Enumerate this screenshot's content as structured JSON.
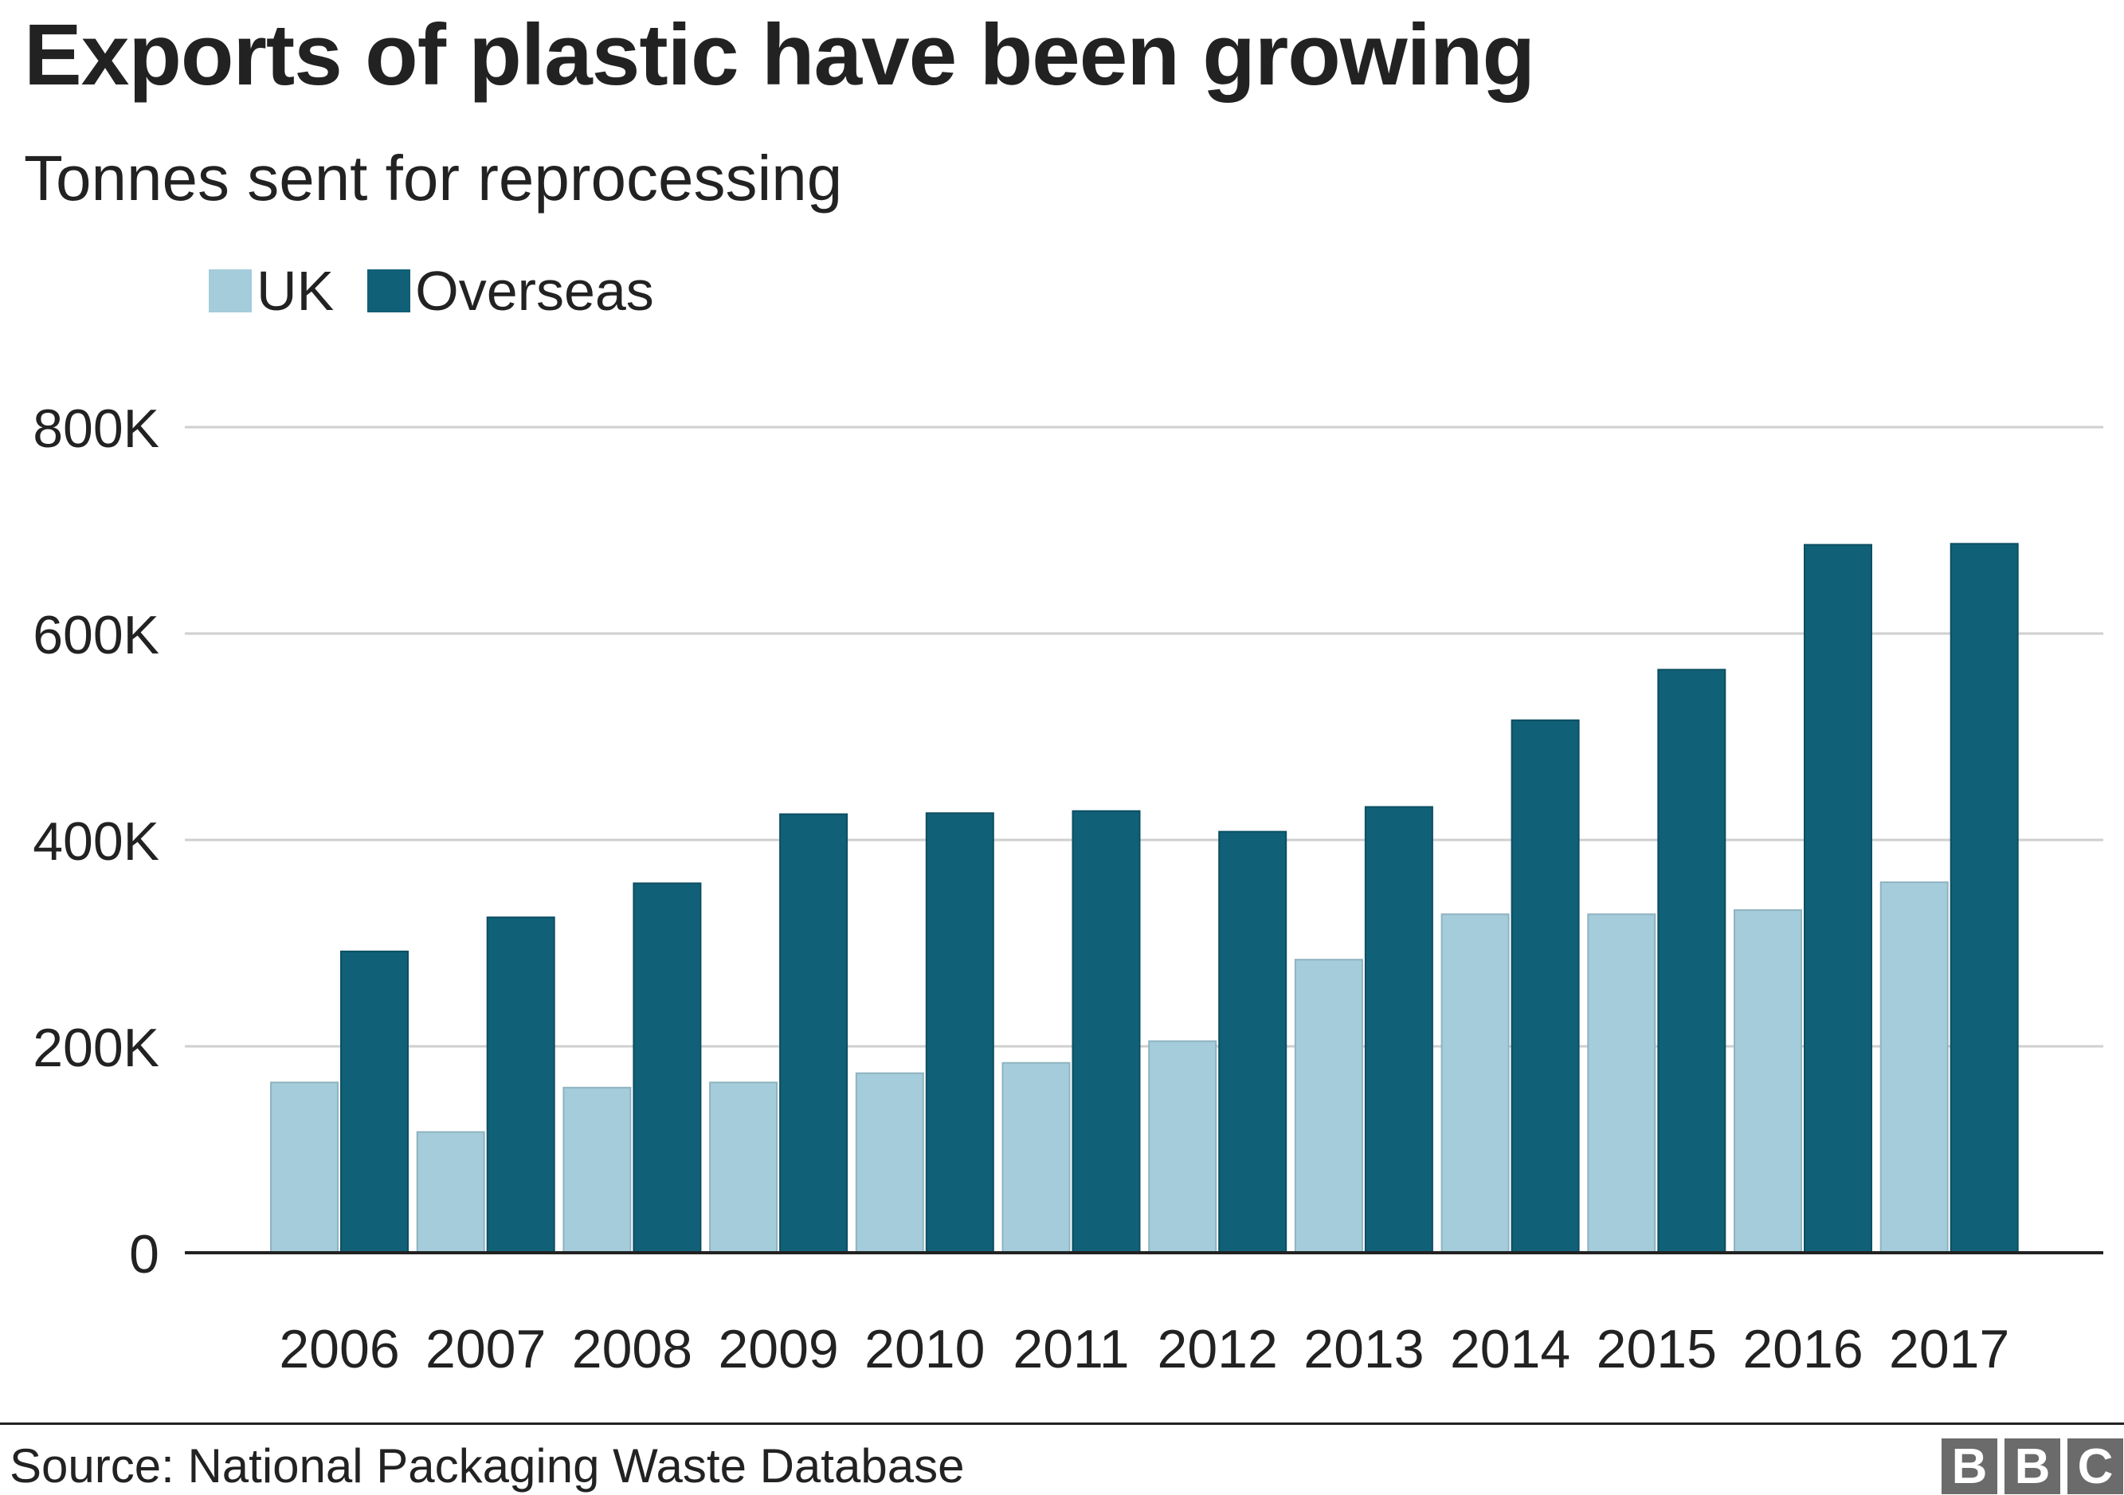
{
  "title": "Exports of plastic have been growing",
  "subtitle": "Tonnes sent for reprocessing",
  "legend": [
    {
      "label": "UK",
      "color": "#a4ccda"
    },
    {
      "label": "Overseas",
      "color": "#106077"
    }
  ],
  "source": "Source: National Packaging Waste Database",
  "logo": {
    "letters": [
      "B",
      "B",
      "C"
    ]
  },
  "chart_data": {
    "type": "bar",
    "categories": [
      "2006",
      "2007",
      "2008",
      "2009",
      "2010",
      "2011",
      "2012",
      "2013",
      "2014",
      "2015",
      "2016",
      "2017"
    ],
    "series": [
      {
        "name": "UK",
        "color": "#a4ccda",
        "values": [
          165000,
          117000,
          160000,
          165000,
          174000,
          184000,
          205000,
          284000,
          328000,
          328000,
          332000,
          359000
        ]
      },
      {
        "name": "Overseas",
        "color": "#106077",
        "values": [
          292000,
          325000,
          358000,
          425000,
          426000,
          428000,
          408000,
          432000,
          516000,
          565000,
          686000,
          687000
        ]
      }
    ],
    "title": "Exports of plastic have been growing",
    "subtitle": "Tonnes sent for reprocessing",
    "ylim": [
      0,
      800000
    ],
    "yticks": [
      0,
      200000,
      400000,
      600000,
      800000
    ],
    "ytick_labels": [
      "0",
      "200K",
      "400K",
      "600K",
      "800K"
    ],
    "grid": true,
    "legend_position": "top-left"
  }
}
